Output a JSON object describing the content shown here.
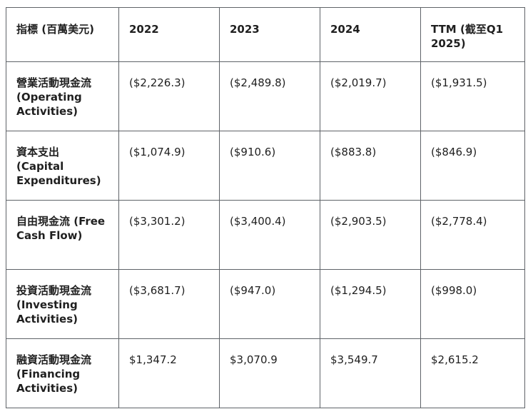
{
  "table": {
    "headers": [
      "指標 (百萬美元)",
      "2022",
      "2023",
      "2024",
      "TTM (截至Q1 2025)"
    ],
    "rows": [
      {
        "label": "營業活動現金流 (Operating Activities)",
        "values": [
          "($2,226.3)",
          "($2,489.8)",
          "($2,019.7)",
          "($1,931.5)"
        ]
      },
      {
        "label": "資本支出 (Capital Expenditures)",
        "values": [
          "($1,074.9)",
          "($910.6)",
          "($883.8)",
          "($846.9)"
        ]
      },
      {
        "label": "自由現金流 (Free Cash Flow)",
        "values": [
          "($3,301.2)",
          "($3,400.4)",
          "($2,903.5)",
          "($2,778.4)"
        ]
      },
      {
        "label": "投資活動現金流 (Investing Activities)",
        "values": [
          "($3,681.7)",
          "($947.0)",
          "($1,294.5)",
          "($998.0)"
        ]
      },
      {
        "label": "融資活動現金流 (Financing Activities)",
        "values": [
          "$1,347.2",
          "$3,070.9",
          "$3,549.7",
          "$2,615.2"
        ]
      }
    ]
  }
}
